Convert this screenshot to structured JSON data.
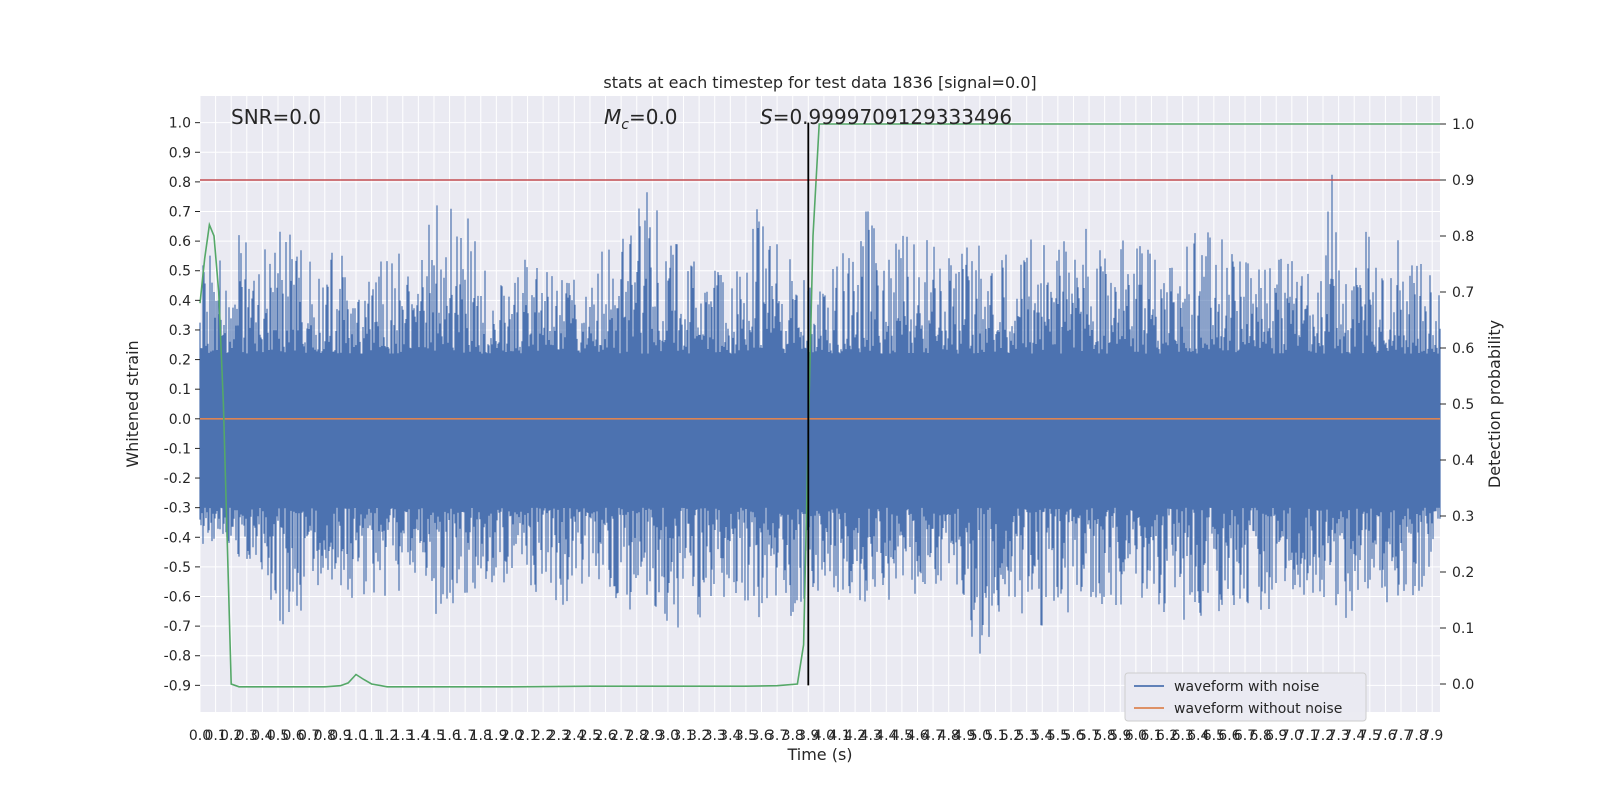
{
  "chart_data": {
    "type": "line",
    "title": "stats at each timestep for test data 1836 [signal=0.0]",
    "xlabel": "Time (s)",
    "ylabel": "Whitened strain",
    "y2label": "Detection probability",
    "xlim": [
      0.0,
      7.95
    ],
    "ylim": [
      -0.99,
      1.09
    ],
    "y2lim": [
      -0.05,
      1.05
    ],
    "x_ticks": [
      "0.0",
      "0.1",
      "0.2",
      "0.3",
      "0.4",
      "0.5",
      "0.6",
      "0.7",
      "0.8",
      "0.9",
      "1.0",
      "1.1",
      "1.2",
      "1.3",
      "1.4",
      "1.5",
      "1.6",
      "1.7",
      "1.8",
      "1.9",
      "2.0",
      "2.1",
      "2.2",
      "2.3",
      "2.4",
      "2.5",
      "2.6",
      "2.7",
      "2.8",
      "2.9",
      "3.0",
      "3.1",
      "3.2",
      "3.3",
      "3.4",
      "3.5",
      "3.6",
      "3.7",
      "3.8",
      "3.9",
      "4.0",
      "4.1",
      "4.2",
      "4.3",
      "4.4",
      "4.5",
      "4.6",
      "4.7",
      "4.8",
      "4.9",
      "5.0",
      "5.1",
      "5.2",
      "5.3",
      "5.4",
      "5.5",
      "5.6",
      "5.7",
      "5.8",
      "5.9",
      "6.0",
      "6.1",
      "6.2",
      "6.3",
      "6.4",
      "6.5",
      "6.6",
      "6.7",
      "6.8",
      "6.9",
      "7.0",
      "7.1",
      "7.2",
      "7.3",
      "7.4",
      "7.5",
      "7.6",
      "7.7",
      "7.8",
      "7.9"
    ],
    "y_ticks": [
      "1.0",
      "0.9",
      "0.8",
      "0.7",
      "0.6",
      "0.5",
      "0.4",
      "0.3",
      "0.2",
      "0.1",
      "0.0",
      "-0.1",
      "-0.2",
      "-0.3",
      "-0.4",
      "-0.5",
      "-0.6",
      "-0.7",
      "-0.8",
      "-0.9"
    ],
    "y2_ticks": [
      "1.0",
      "0.9",
      "0.8",
      "0.7",
      "0.6",
      "0.5",
      "0.4",
      "0.3",
      "0.2",
      "0.1",
      "0.0"
    ],
    "annotations": {
      "snr": "SNR=0.0",
      "mc_symbol": "M",
      "mc_sub": "c",
      "mc_value": "=0.0",
      "s_symbol": "S",
      "s_value": "=0.9999709129333496"
    },
    "series": [
      {
        "name": "waveform with noise",
        "color": "#4c72b0",
        "axis": "left",
        "envelope_upper": [
          [
            0.0,
            0.65
          ],
          [
            0.02,
            0.7
          ],
          [
            0.05,
            0.6
          ],
          [
            0.1,
            0.72
          ],
          [
            0.15,
            0.45
          ],
          [
            0.2,
            0.5
          ],
          [
            0.27,
            0.68
          ],
          [
            0.35,
            0.48
          ],
          [
            0.45,
            0.62
          ],
          [
            0.6,
            0.65
          ],
          [
            0.75,
            0.5
          ],
          [
            0.9,
            0.62
          ],
          [
            1.0,
            0.4
          ],
          [
            1.2,
            0.6
          ],
          [
            1.4,
            0.5
          ],
          [
            1.5,
            0.73
          ],
          [
            1.7,
            0.72
          ],
          [
            1.9,
            0.45
          ],
          [
            2.1,
            0.55
          ],
          [
            2.3,
            0.5
          ],
          [
            2.5,
            0.48
          ],
          [
            2.6,
            0.62
          ],
          [
            2.75,
            0.65
          ],
          [
            2.9,
            0.8
          ],
          [
            3.1,
            0.55
          ],
          [
            3.3,
            0.5
          ],
          [
            3.45,
            0.6
          ],
          [
            3.5,
            0.83
          ],
          [
            3.65,
            0.62
          ],
          [
            3.8,
            0.55
          ],
          [
            3.91,
            0.47
          ],
          [
            3.95,
            0.48
          ],
          [
            4.05,
            0.5
          ],
          [
            4.15,
            0.6
          ],
          [
            4.2,
            0.8
          ],
          [
            4.4,
            0.6
          ],
          [
            4.6,
            0.65
          ],
          [
            4.8,
            0.55
          ],
          [
            4.95,
            0.62
          ],
          [
            5.1,
            0.55
          ],
          [
            5.3,
            0.6
          ],
          [
            5.5,
            0.65
          ],
          [
            5.6,
            0.68
          ],
          [
            5.8,
            0.6
          ],
          [
            6.0,
            0.62
          ],
          [
            6.2,
            0.5
          ],
          [
            6.4,
            0.65
          ],
          [
            6.6,
            0.6
          ],
          [
            6.8,
            0.55
          ],
          [
            7.0,
            0.55
          ],
          [
            7.2,
            0.5
          ],
          [
            7.25,
            0.99
          ],
          [
            7.3,
            0.5
          ],
          [
            7.5,
            0.65
          ],
          [
            7.7,
            0.6
          ],
          [
            7.95,
            0.45
          ]
        ],
        "envelope_lower": [
          [
            0.0,
            -0.45
          ],
          [
            0.02,
            -0.5
          ],
          [
            0.1,
            -0.4
          ],
          [
            0.2,
            -0.45
          ],
          [
            0.3,
            -0.5
          ],
          [
            0.4,
            -0.55
          ],
          [
            0.55,
            -0.75
          ],
          [
            0.6,
            -0.7
          ],
          [
            0.8,
            -0.55
          ],
          [
            1.0,
            -0.65
          ],
          [
            1.2,
            -0.6
          ],
          [
            1.4,
            -0.55
          ],
          [
            1.55,
            -0.7
          ],
          [
            1.7,
            -0.6
          ],
          [
            1.9,
            -0.55
          ],
          [
            2.1,
            -0.6
          ],
          [
            2.3,
            -0.65
          ],
          [
            2.5,
            -0.55
          ],
          [
            2.7,
            -0.72
          ],
          [
            2.9,
            -0.65
          ],
          [
            3.1,
            -0.77
          ],
          [
            3.3,
            -0.6
          ],
          [
            3.5,
            -0.65
          ],
          [
            3.7,
            -0.72
          ],
          [
            3.9,
            -0.6
          ],
          [
            4.1,
            -0.6
          ],
          [
            4.3,
            -0.65
          ],
          [
            4.5,
            -0.6
          ],
          [
            4.7,
            -0.6
          ],
          [
            4.9,
            -0.7
          ],
          [
            5.0,
            -0.82
          ],
          [
            5.2,
            -0.65
          ],
          [
            5.4,
            -0.72
          ],
          [
            5.6,
            -0.65
          ],
          [
            5.8,
            -0.7
          ],
          [
            6.0,
            -0.6
          ],
          [
            6.2,
            -0.68
          ],
          [
            6.4,
            -0.7
          ],
          [
            6.6,
            -0.65
          ],
          [
            6.8,
            -0.68
          ],
          [
            7.0,
            -0.6
          ],
          [
            7.2,
            -0.6
          ],
          [
            7.35,
            -0.68
          ],
          [
            7.45,
            -0.9
          ],
          [
            7.5,
            -0.62
          ],
          [
            7.7,
            -0.65
          ],
          [
            7.85,
            -0.6
          ],
          [
            7.95,
            -0.38
          ]
        ]
      },
      {
        "name": "waveform without noise",
        "color": "#dd8452",
        "axis": "left",
        "x": [
          0.0,
          7.95
        ],
        "y": [
          0.0,
          0.0
        ]
      },
      {
        "name": "",
        "color": "#55a868",
        "axis": "right",
        "x": [
          0.0,
          0.03,
          0.06,
          0.09,
          0.12,
          0.15,
          0.18,
          0.2,
          0.25,
          0.3,
          0.5,
          0.8,
          0.9,
          0.95,
          1.0,
          1.05,
          1.1,
          1.2,
          1.5,
          2.0,
          2.5,
          3.0,
          3.5,
          3.7,
          3.83,
          3.87,
          3.9,
          3.93,
          3.97,
          4.0,
          4.5,
          5.0,
          6.0,
          7.0,
          7.95
        ],
        "y": [
          0.68,
          0.76,
          0.82,
          0.8,
          0.7,
          0.5,
          0.2,
          0.0,
          -0.005,
          -0.005,
          -0.005,
          -0.005,
          -0.003,
          0.002,
          0.017,
          0.008,
          0.0,
          -0.005,
          -0.005,
          -0.005,
          -0.004,
          -0.004,
          -0.004,
          -0.003,
          0.0,
          0.07,
          0.45,
          0.8,
          1.0,
          1.0,
          1.0,
          1.0,
          1.0,
          1.0,
          1.0
        ]
      },
      {
        "name": "",
        "color": "#c44e52",
        "axis": "right",
        "x": [
          0.0,
          7.95
        ],
        "y": [
          0.9,
          0.9
        ]
      }
    ],
    "vline": {
      "x": 3.9,
      "ymin": -0.9,
      "ymax": 1.0,
      "color": "#000000"
    },
    "legend": {
      "placement": "lower-right",
      "entries": [
        {
          "label": "waveform with noise",
          "color": "#4c72b0"
        },
        {
          "label": "waveform without noise",
          "color": "#dd8452"
        }
      ]
    },
    "grid": true,
    "background": "#eaeaf2"
  }
}
